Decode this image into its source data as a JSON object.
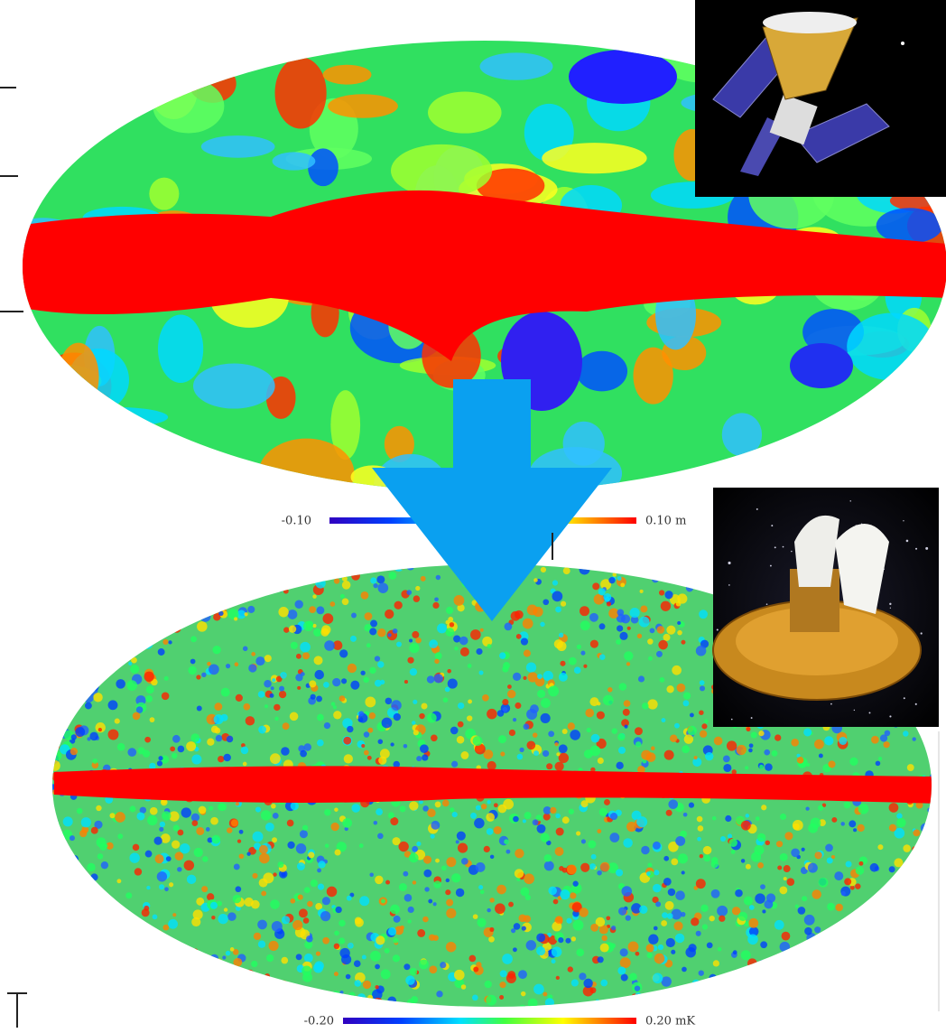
{
  "top_map": {
    "scale_min": "-0.10",
    "scale_max": "0.10 m"
  },
  "bottom_map": {
    "scale_min": "-0.20",
    "scale_max": "0.20 mK"
  }
}
